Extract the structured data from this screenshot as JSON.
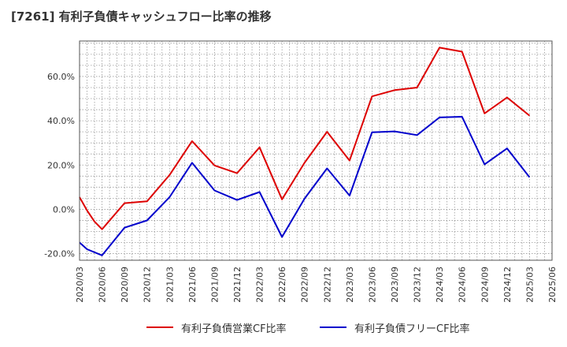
{
  "title": "[7261]  有利子負債キャッシュフロー比率の推移",
  "chart_data": {
    "type": "line",
    "title": "[7261]  有利子負債キャッシュフロー比率の推移",
    "xlabel": "",
    "ylabel": "",
    "ylim": [
      -23,
      76
    ],
    "yticks": [
      "-20.0%",
      "0.0%",
      "20.0%",
      "40.0%",
      "60.0%"
    ],
    "ytick_values": [
      -20,
      0,
      20,
      40,
      60
    ],
    "grid": true,
    "legend_position": "bottom",
    "x": [
      "2020/03",
      "2020/06",
      "2020/09",
      "2020/12",
      "2021/03",
      "2021/06",
      "2021/09",
      "2021/12",
      "2022/03",
      "2022/06",
      "2022/09",
      "2022/12",
      "2023/03",
      "2023/06",
      "2023/09",
      "2023/12",
      "2024/03",
      "2024/06",
      "2024/09",
      "2024/12",
      "2025/03",
      "2025/06"
    ],
    "series": [
      {
        "name": "有利子負債営業CF比率",
        "color": "#dd0000",
        "points": [
          [
            "2020/03",
            5.5
          ],
          [
            "2020/04",
            -0.5
          ],
          [
            "2020/05",
            -5.5
          ],
          [
            "2020/06",
            -9.0
          ],
          [
            "2020/09",
            2.8
          ],
          [
            "2020/12",
            3.6
          ],
          [
            "2021/03",
            15.5
          ],
          [
            "2021/06",
            30.8
          ],
          [
            "2021/09",
            19.8
          ],
          [
            "2021/12",
            16.3
          ],
          [
            "2022/03",
            28.0
          ],
          [
            "2022/06",
            4.5
          ],
          [
            "2022/09",
            21.0
          ],
          [
            "2022/12",
            35.0
          ],
          [
            "2023/03",
            22.0
          ],
          [
            "2023/06",
            51.0
          ],
          [
            "2023/09",
            53.8
          ],
          [
            "2023/12",
            55.0
          ],
          [
            "2024/03",
            73.0
          ],
          [
            "2024/06",
            71.2
          ],
          [
            "2024/09",
            43.3
          ],
          [
            "2024/12",
            50.5
          ],
          [
            "2025/03",
            42.3
          ]
        ]
      },
      {
        "name": "有利子負債フリーCF比率",
        "color": "#0000cc",
        "points": [
          [
            "2020/03",
            -15.0
          ],
          [
            "2020/04",
            -18.0
          ],
          [
            "2020/06",
            -20.8
          ],
          [
            "2020/09",
            -8.3
          ],
          [
            "2020/12",
            -5.0
          ],
          [
            "2021/03",
            5.5
          ],
          [
            "2021/06",
            21.0
          ],
          [
            "2021/09",
            8.5
          ],
          [
            "2021/12",
            4.2
          ],
          [
            "2022/03",
            7.8
          ],
          [
            "2022/06",
            -12.5
          ],
          [
            "2022/09",
            4.8
          ],
          [
            "2022/12",
            18.5
          ],
          [
            "2023/03",
            6.2
          ],
          [
            "2023/06",
            34.8
          ],
          [
            "2023/09",
            35.2
          ],
          [
            "2023/12",
            33.5
          ],
          [
            "2024/03",
            41.5
          ],
          [
            "2024/06",
            41.8
          ],
          [
            "2024/09",
            20.3
          ],
          [
            "2024/12",
            27.5
          ],
          [
            "2025/03",
            14.5
          ]
        ]
      }
    ]
  }
}
